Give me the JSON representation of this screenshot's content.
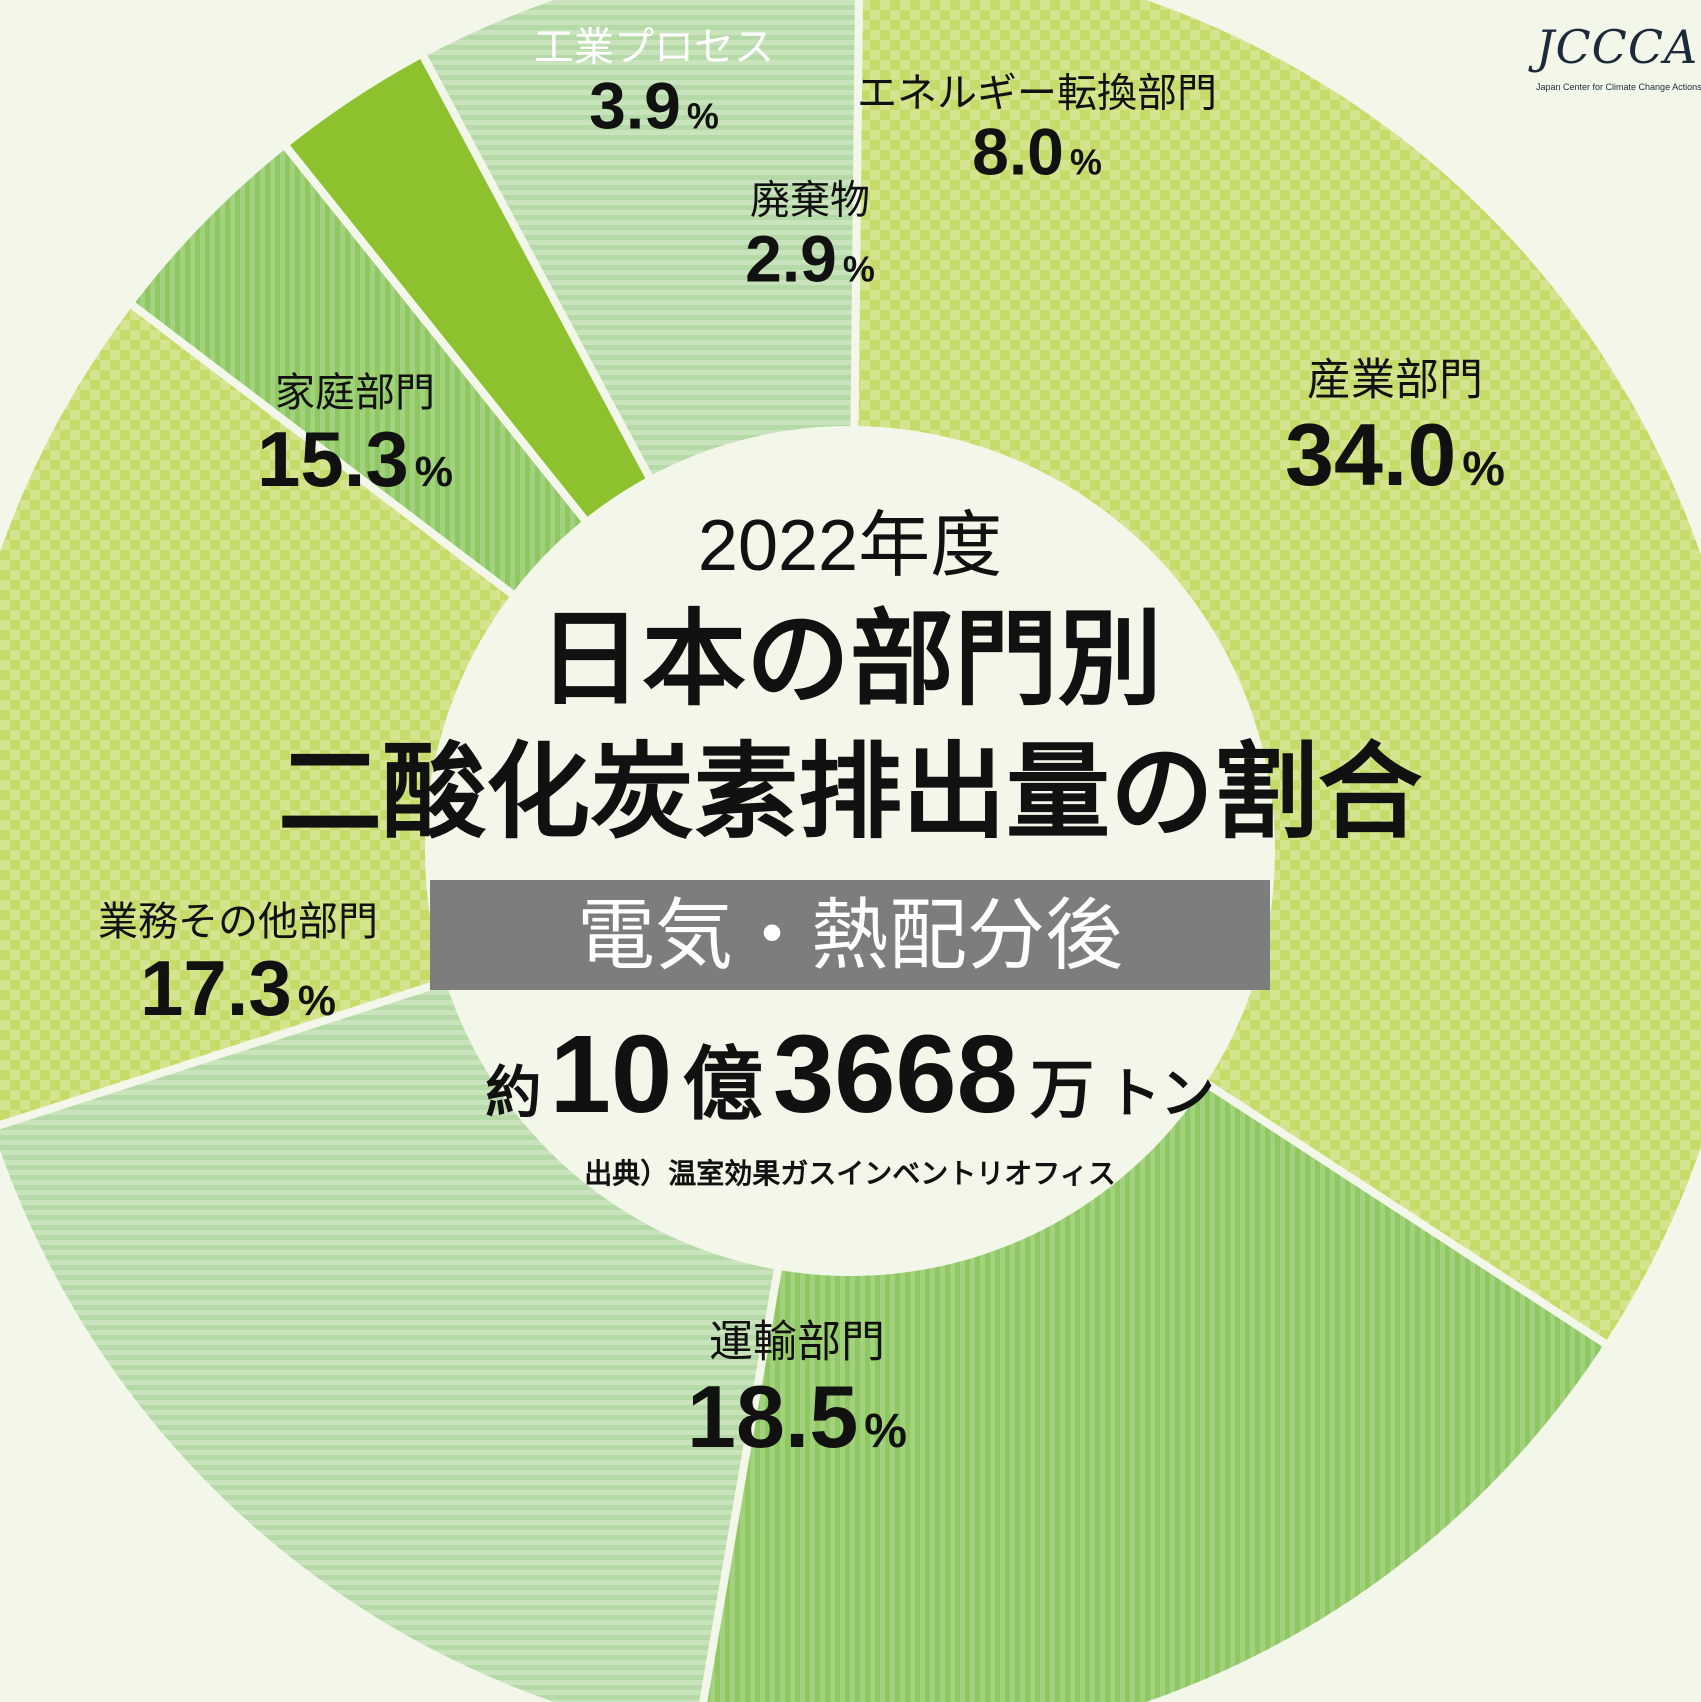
{
  "logo": {
    "mark": "JCCCA",
    "subtitle": "Japan Center for Climate Change Actions"
  },
  "center": {
    "year": "2022年度",
    "title_line1": "日本の部門別",
    "title_line2": "二酸化炭素排出量の割合",
    "band": "電気・熱配分後",
    "total_prefix": "約",
    "total_num1": "10",
    "total_unit1": "億",
    "total_num2": "3668",
    "total_unit2": "万",
    "total_unit3": "トン",
    "source": "出典）温室効果ガスインベントリオフィス"
  },
  "chart_data": {
    "type": "pie",
    "variant": "donut",
    "unit": "%",
    "slices": [
      {
        "label": "産業部門",
        "value": 34.0,
        "display": "34.0",
        "color": "#c5dc6b",
        "pattern": "checker"
      },
      {
        "label": "運輸部門",
        "value": 18.5,
        "display": "18.5",
        "color": "#96cc6c",
        "pattern": "vstripe"
      },
      {
        "label": "業務その他部門",
        "value": 17.3,
        "display": "17.3",
        "color": "#bcdcae",
        "pattern": "hstripe"
      },
      {
        "label": "家庭部門",
        "value": 15.3,
        "display": "15.3",
        "color": "#c5dc6b",
        "pattern": "checker"
      },
      {
        "label": "工業プロセス",
        "value": 3.9,
        "display": "3.9",
        "color": "#96cc6c",
        "pattern": "vstripe"
      },
      {
        "label": "廃棄物",
        "value": 2.9,
        "display": "2.9",
        "color": "#8dc22e",
        "pattern": "solid"
      },
      {
        "label": "エネルギー転換部門",
        "value": 8.0,
        "display": "8.0",
        "color": "#bcdcae",
        "pattern": "hstripe"
      }
    ]
  }
}
